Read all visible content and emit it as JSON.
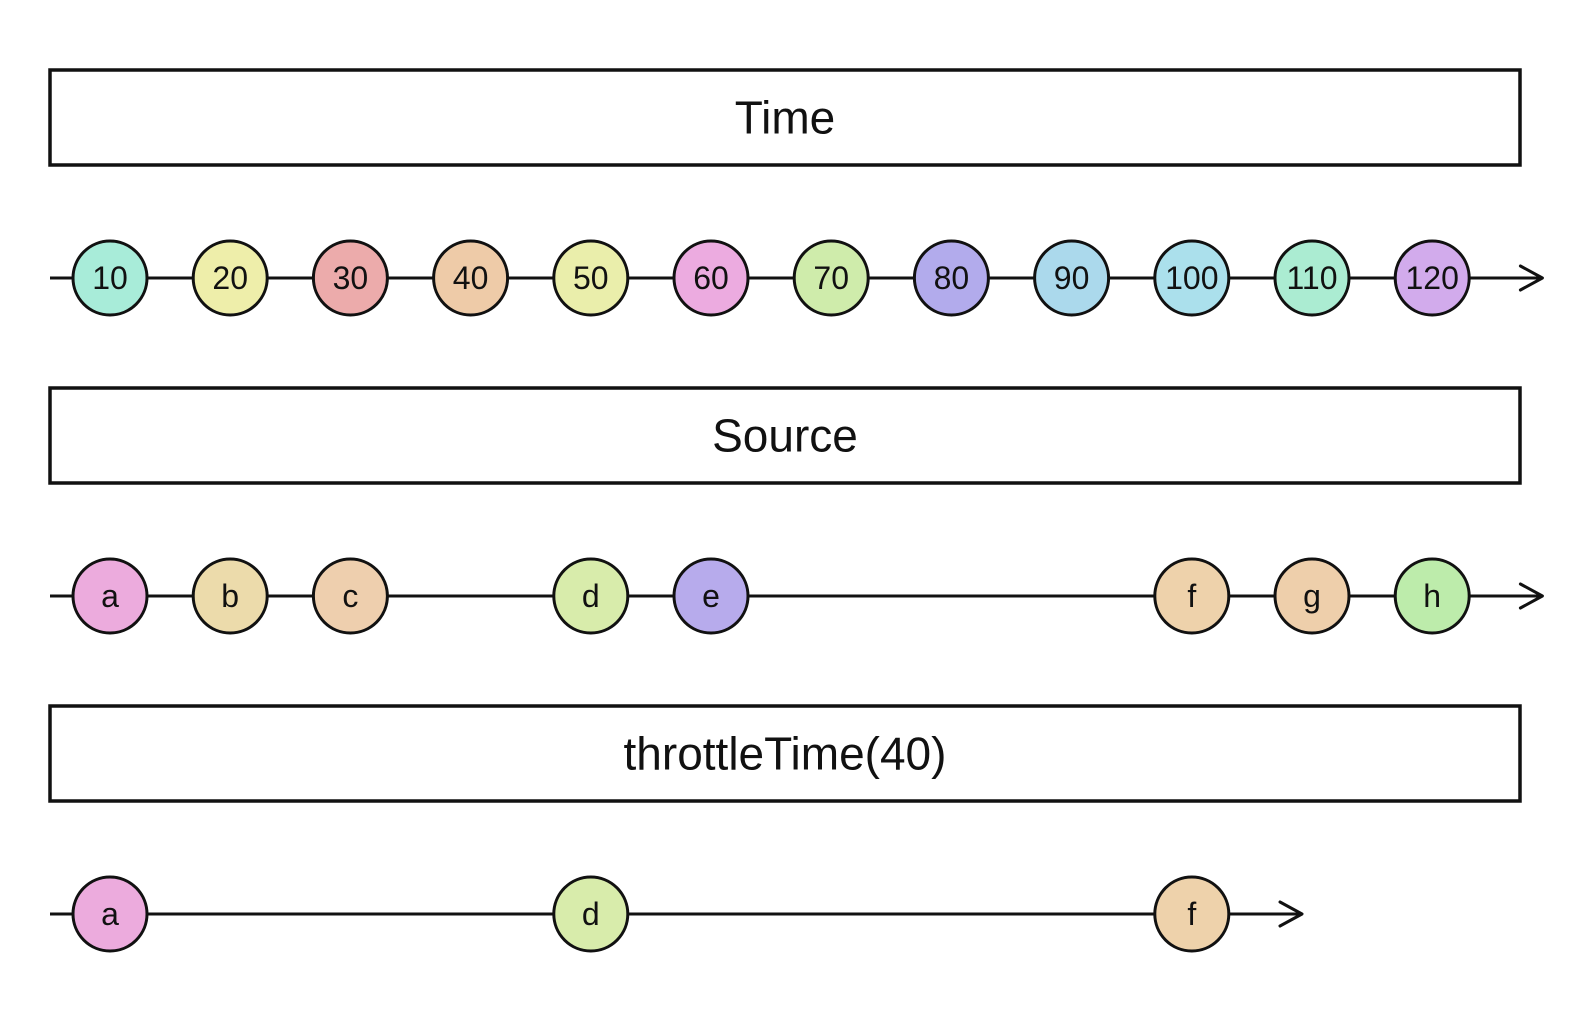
{
  "panels": [
    {
      "label": "Time",
      "end_step": 12,
      "marbles": [
        {
          "text": "10",
          "step": 0,
          "color": "#a8ecd9"
        },
        {
          "text": "20",
          "step": 1,
          "color": "#eeeeaa"
        },
        {
          "text": "30",
          "step": 2,
          "color": "#ecabab"
        },
        {
          "text": "40",
          "step": 3,
          "color": "#eecba8"
        },
        {
          "text": "50",
          "step": 4,
          "color": "#eaeeab"
        },
        {
          "text": "60",
          "step": 5,
          "color": "#ecabe0"
        },
        {
          "text": "70",
          "step": 6,
          "color": "#cfecab"
        },
        {
          "text": "80",
          "step": 7,
          "color": "#b2abec"
        },
        {
          "text": "90",
          "step": 8,
          "color": "#abd9ec"
        },
        {
          "text": "100",
          "step": 9,
          "color": "#abe0ec"
        },
        {
          "text": "110",
          "step": 10,
          "color": "#abecd2"
        },
        {
          "text": "120",
          "step": 11,
          "color": "#d2abec"
        }
      ]
    },
    {
      "label": "Source",
      "end_step": 12,
      "marbles": [
        {
          "text": "a",
          "step": 0,
          "color": "#ecabdd"
        },
        {
          "text": "b",
          "step": 1,
          "color": "#ecdbab"
        },
        {
          "text": "c",
          "step": 2,
          "color": "#eecfae"
        },
        {
          "text": "d",
          "step": 4,
          "color": "#d8ecab"
        },
        {
          "text": "e",
          "step": 5,
          "color": "#b7abec"
        },
        {
          "text": "f",
          "step": 9,
          "color": "#eed2ab"
        },
        {
          "text": "g",
          "step": 10,
          "color": "#eecfab"
        },
        {
          "text": "h",
          "step": 11,
          "color": "#bdecab"
        }
      ]
    },
    {
      "label": "throttleTime(40)",
      "end_step": 10,
      "marbles": [
        {
          "text": "a",
          "step": 0,
          "color": "#ecabdd"
        },
        {
          "text": "d",
          "step": 4,
          "color": "#d8ecab"
        },
        {
          "text": "f",
          "step": 9,
          "color": "#eed2ab"
        }
      ]
    }
  ]
}
